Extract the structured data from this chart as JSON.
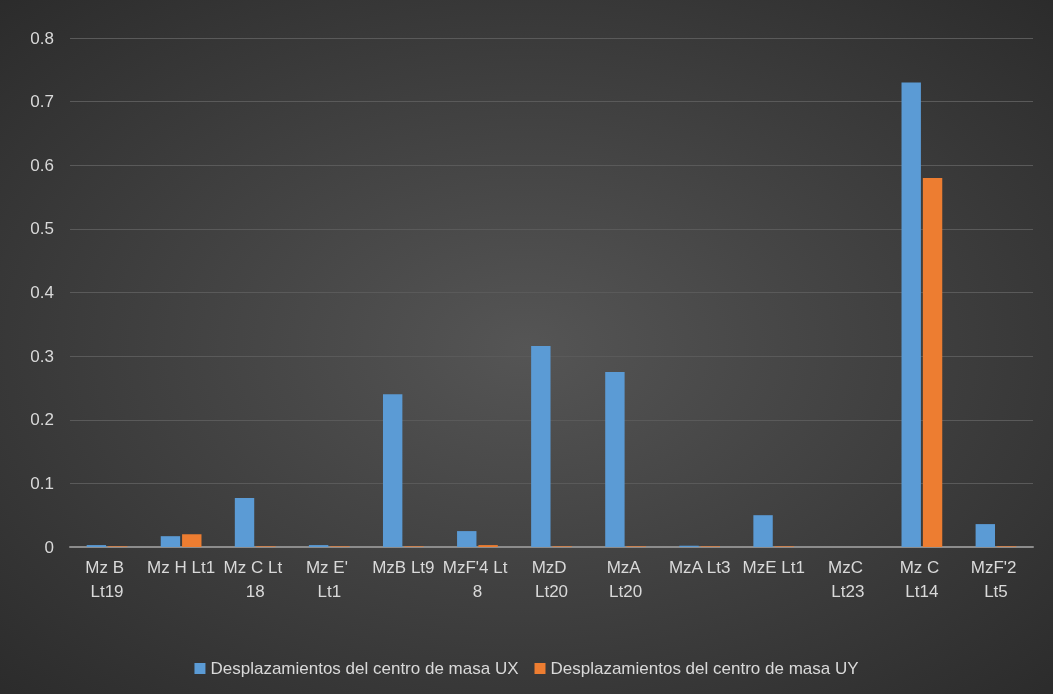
{
  "chart_data": {
    "type": "bar",
    "categories": [
      "Mz B Lt19",
      "Mz H Lt1",
      "Mz C Lt 18",
      "Mz E' Lt1",
      "MzB Lt9",
      "MzF'4 Lt 8",
      "MzD Lt20",
      "MzA Lt20",
      "MzA Lt3",
      "MzE Lt1",
      "MzC Lt23",
      "Mz C Lt14",
      "MzF'2 Lt5"
    ],
    "series": [
      {
        "name": "Desplazamientos del centro de masa UX",
        "color": "#5b9bd5",
        "values": [
          0.003,
          0.017,
          0.077,
          0.003,
          0.24,
          0.025,
          0.316,
          0.275,
          0.002,
          0.05,
          0,
          0.73,
          0.036
        ]
      },
      {
        "name": "Desplazamientos del centro de masa UY",
        "color": "#ed7d31",
        "values": [
          0.001,
          0.02,
          0.001,
          0.001,
          0.001,
          0.003,
          0.001,
          0.001,
          0.001,
          0.001,
          0,
          0.58,
          0.001
        ]
      }
    ],
    "ylim": [
      0,
      0.8
    ],
    "yticks": [
      0,
      0.1,
      0.2,
      0.3,
      0.4,
      0.5,
      0.6,
      0.7,
      0.8
    ],
    "grid": "y",
    "legend": "bottom"
  }
}
